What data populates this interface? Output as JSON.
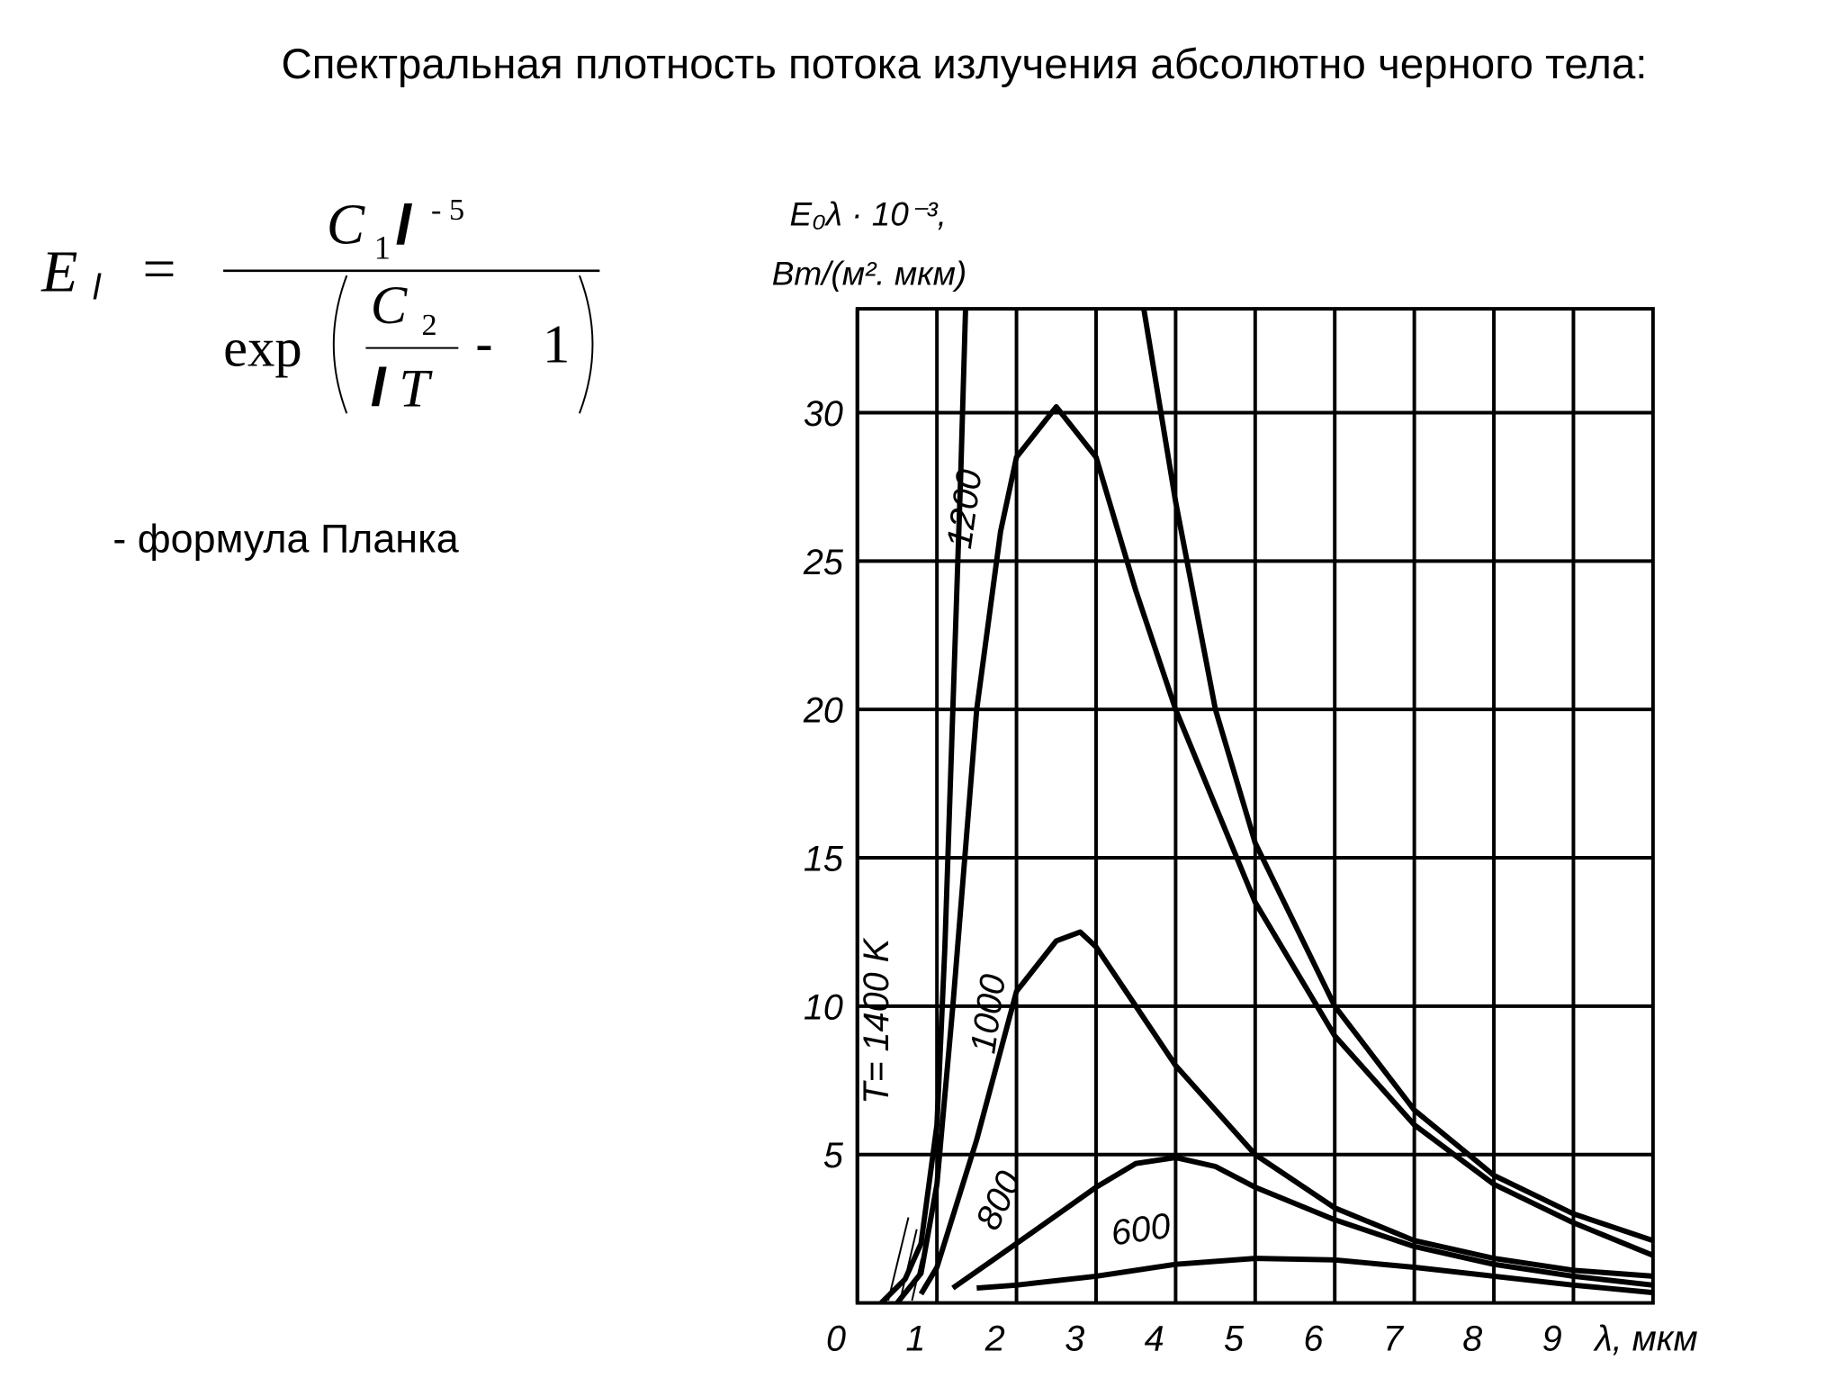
{
  "title": "Спектральная плотность потока излучения абсолютно черного тела:",
  "formula": {
    "lhs": "E",
    "lhs_sub": "l",
    "equals": "=",
    "num_c": "C",
    "num_sub": "1",
    "num_var": "l",
    "num_exp": "- 5",
    "func": "exp",
    "inner_c": "C",
    "inner_sub": "2",
    "inner_var": "l",
    "inner_t": "T",
    "minus": "-",
    "one": "1"
  },
  "caption": "- формула Планка",
  "chart_data": {
    "type": "line",
    "ylabel": [
      "E₀λ · 10⁻³,",
      "Вт/(м². мкм)"
    ],
    "xlabel": "λ, мкм",
    "xlim": [
      0,
      10
    ],
    "xticks": [
      0,
      1,
      2,
      3,
      4,
      5,
      6,
      7,
      8,
      9
    ],
    "ylim": [
      0,
      33.5
    ],
    "yticks": [
      5,
      10,
      15,
      20,
      25,
      30
    ],
    "grid": true,
    "series": [
      {
        "name": "T= 1400 K",
        "color": "#000000",
        "x": [
          0.3,
          0.6,
          0.8,
          1.0,
          1.1,
          1.2,
          1.3,
          1.36,
          1.4,
          3.6,
          4,
          4.5,
          5,
          6,
          7,
          8,
          9,
          10
        ],
        "values": [
          0,
          0.8,
          2,
          6,
          12,
          20,
          28,
          33.5,
          null,
          33.5,
          27,
          20,
          15.5,
          10,
          6.5,
          4.3,
          3,
          2.1
        ]
      },
      {
        "name": "1200",
        "color": "#000000",
        "x": [
          0.5,
          0.8,
          1,
          1.2,
          1.5,
          1.8,
          2,
          2.5,
          3,
          3.5,
          4,
          5,
          6,
          7,
          8,
          9,
          10
        ],
        "values": [
          0,
          1,
          4,
          10,
          20,
          26,
          28.5,
          30.2,
          28.5,
          24,
          20,
          13.5,
          9,
          6,
          4,
          2.7,
          1.6
        ]
      },
      {
        "name": "1000",
        "color": "#000000",
        "x": [
          0.8,
          1,
          1.5,
          2,
          2.5,
          2.8,
          3,
          3.5,
          4,
          5,
          6,
          7,
          8,
          9,
          10
        ],
        "values": [
          0.3,
          1.2,
          5.5,
          10.5,
          12.2,
          12.5,
          12,
          10,
          8,
          5,
          3.2,
          2.1,
          1.5,
          1.1,
          0.9
        ]
      },
      {
        "name": "800",
        "color": "#000000",
        "x": [
          1.2,
          2,
          3,
          3.5,
          4,
          4.5,
          5,
          6,
          7,
          8,
          9,
          10
        ],
        "values": [
          0.5,
          2,
          3.9,
          4.7,
          4.9,
          4.6,
          3.9,
          2.8,
          1.9,
          1.3,
          0.9,
          0.6
        ]
      },
      {
        "name": "600",
        "color": "#000000",
        "x": [
          1.5,
          2,
          3,
          4,
          5,
          6,
          7,
          8,
          9,
          10
        ],
        "values": [
          0.5,
          0.6,
          0.9,
          1.3,
          1.5,
          1.45,
          1.2,
          0.9,
          0.6,
          0.35
        ]
      }
    ]
  }
}
